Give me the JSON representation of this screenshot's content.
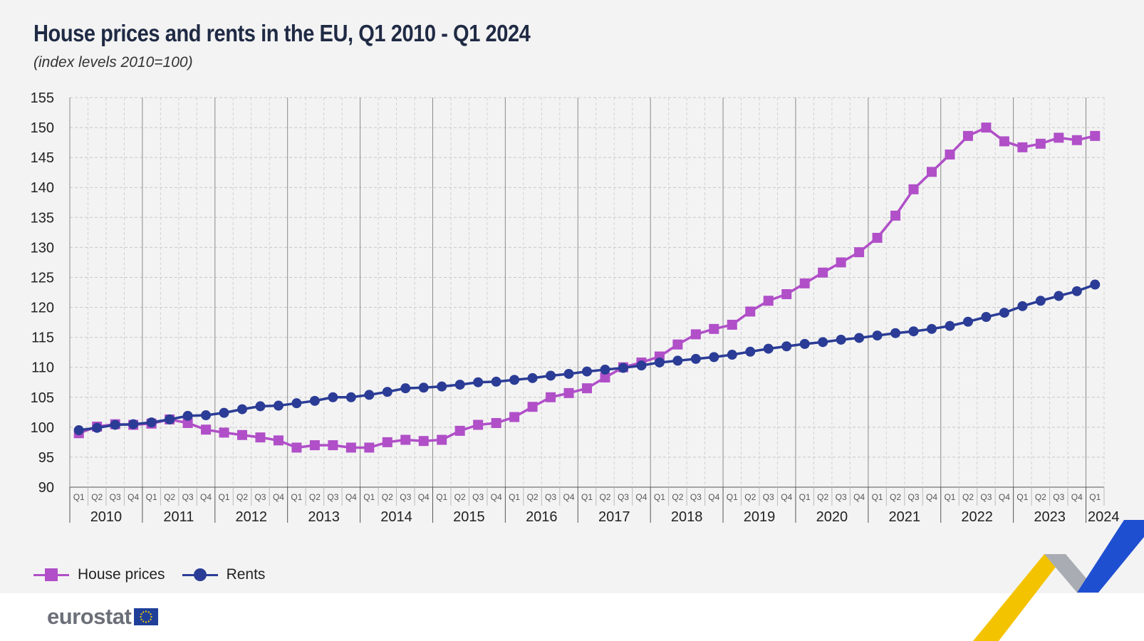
{
  "title": "House prices and rents in the EU, Q1 2010 - Q1 2024",
  "subtitle": "(index levels 2010=100)",
  "colors": {
    "house_prices": "#b04fc8",
    "rents": "#2b3c96",
    "grid": "#c8c8c8",
    "axis": "#555555"
  },
  "chart_data": {
    "type": "line",
    "title": "House prices and rents in the EU, Q1 2010 - Q1 2024",
    "subtitle": "(index levels 2010=100)",
    "ylim": [
      90,
      155
    ],
    "yticks": [
      90,
      95,
      100,
      105,
      110,
      115,
      120,
      125,
      130,
      135,
      140,
      145,
      150,
      155
    ],
    "quarter_labels": [
      "Q1",
      "Q2",
      "Q3",
      "Q4"
    ],
    "years": [
      "2010",
      "2011",
      "2012",
      "2013",
      "2014",
      "2015",
      "2016",
      "2017",
      "2018",
      "2019",
      "2020",
      "2021",
      "2022",
      "2023",
      "2024"
    ],
    "x": [
      "2010Q1",
      "2010Q2",
      "2010Q3",
      "2010Q4",
      "2011Q1",
      "2011Q2",
      "2011Q3",
      "2011Q4",
      "2012Q1",
      "2012Q2",
      "2012Q3",
      "2012Q4",
      "2013Q1",
      "2013Q2",
      "2013Q3",
      "2013Q4",
      "2014Q1",
      "2014Q2",
      "2014Q3",
      "2014Q4",
      "2015Q1",
      "2015Q2",
      "2015Q3",
      "2015Q4",
      "2016Q1",
      "2016Q2",
      "2016Q3",
      "2016Q4",
      "2017Q1",
      "2017Q2",
      "2017Q3",
      "2017Q4",
      "2018Q1",
      "2018Q2",
      "2018Q3",
      "2018Q4",
      "2019Q1",
      "2019Q2",
      "2019Q3",
      "2019Q4",
      "2020Q1",
      "2020Q2",
      "2020Q3",
      "2020Q4",
      "2021Q1",
      "2021Q2",
      "2021Q3",
      "2021Q4",
      "2022Q1",
      "2022Q2",
      "2022Q3",
      "2022Q4",
      "2023Q1",
      "2023Q2",
      "2023Q3",
      "2023Q4",
      "2024Q1"
    ],
    "series": [
      {
        "name": "House prices",
        "marker": "square",
        "values": [
          99.0,
          100.1,
          100.5,
          100.4,
          100.6,
          101.3,
          100.7,
          99.6,
          99.1,
          98.7,
          98.3,
          97.8,
          96.6,
          97.0,
          97.0,
          96.6,
          96.6,
          97.5,
          97.9,
          97.7,
          97.9,
          99.4,
          100.4,
          100.7,
          101.7,
          103.4,
          105.0,
          105.7,
          106.5,
          108.3,
          110.0,
          110.8,
          111.8,
          113.8,
          115.5,
          116.4,
          117.1,
          119.3,
          121.1,
          122.2,
          124.0,
          125.8,
          127.5,
          129.2,
          131.6,
          135.3,
          139.7,
          142.6,
          145.5,
          148.6,
          150.0,
          147.7,
          146.7,
          147.3,
          148.3,
          147.9,
          148.6
        ]
      },
      {
        "name": "Rents",
        "marker": "circle",
        "values": [
          99.5,
          99.9,
          100.4,
          100.5,
          100.8,
          101.3,
          101.9,
          102.0,
          102.4,
          103.0,
          103.5,
          103.6,
          104.0,
          104.4,
          105.0,
          105.0,
          105.4,
          105.9,
          106.5,
          106.6,
          106.8,
          107.1,
          107.5,
          107.6,
          107.9,
          108.2,
          108.6,
          108.9,
          109.3,
          109.6,
          109.9,
          110.3,
          110.8,
          111.1,
          111.4,
          111.7,
          112.1,
          112.6,
          113.1,
          113.5,
          113.9,
          114.2,
          114.6,
          114.9,
          115.3,
          115.7,
          116.0,
          116.4,
          116.9,
          117.6,
          118.4,
          119.1,
          120.2,
          121.1,
          121.9,
          122.7,
          123.8
        ]
      }
    ],
    "legend_position": "bottom-left",
    "grid": true
  },
  "legend": [
    {
      "label": "House prices"
    },
    {
      "label": "Rents"
    }
  ],
  "footer": {
    "logo_text": "eurostat",
    "flag_icon": "eu-flag-icon",
    "decor_icon": "chevron-decor-icon"
  }
}
